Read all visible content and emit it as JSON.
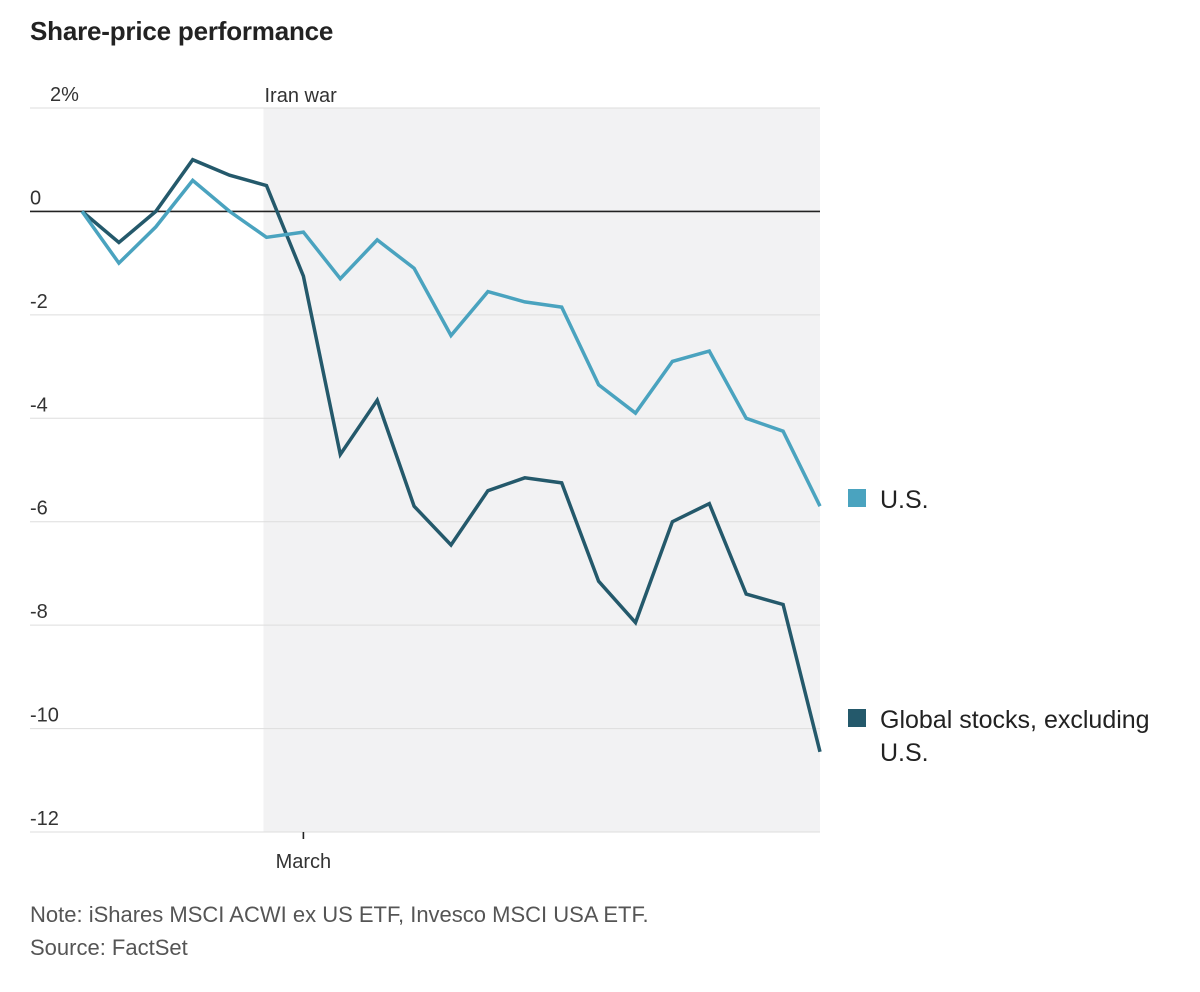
{
  "title": "Share-price performance",
  "chart_data": {
    "type": "line",
    "title": "Share-price performance",
    "xlabel": "",
    "ylabel": "",
    "ylim": [
      -12,
      2
    ],
    "y_ticks": [
      {
        "value": 2,
        "label": "2%"
      },
      {
        "value": 0,
        "label": "0"
      },
      {
        "value": -2,
        "label": "-2"
      },
      {
        "value": -4,
        "label": "-4"
      },
      {
        "value": -6,
        "label": "-6"
      },
      {
        "value": -8,
        "label": "-8"
      },
      {
        "value": -10,
        "label": "-10"
      },
      {
        "value": -12,
        "label": "-12"
      }
    ],
    "x": [
      0,
      1,
      2,
      3,
      4,
      5,
      6,
      7,
      8,
      9,
      10,
      11,
      12,
      13,
      14,
      15,
      16,
      17,
      18,
      19,
      20
    ],
    "x_range": [
      0,
      20
    ],
    "x_ticks": [
      {
        "value": 6,
        "label": "March"
      }
    ],
    "shaded_region": {
      "from": 5,
      "to": 20,
      "label": "Iran war"
    },
    "zero_line": true,
    "grid": true,
    "legend_position": "right",
    "series": [
      {
        "name": "U.S.",
        "color": "#4aa3bf",
        "values": [
          0,
          -1.0,
          -0.3,
          0.6,
          0.0,
          -0.5,
          -0.4,
          -1.3,
          -0.55,
          -1.1,
          -2.4,
          -1.55,
          -1.75,
          -1.85,
          -3.35,
          -3.9,
          -2.9,
          -2.7,
          -4.0,
          -4.25,
          -5.7
        ]
      },
      {
        "name": "Global stocks, excluding U.S.",
        "color": "#24596b",
        "values": [
          0,
          -0.6,
          0.0,
          1.0,
          0.7,
          0.5,
          -1.25,
          -4.7,
          -3.65,
          -5.7,
          -6.45,
          -5.4,
          -5.15,
          -5.25,
          -7.15,
          -7.95,
          -6.0,
          -5.65,
          -7.4,
          -7.6,
          -10.45
        ]
      }
    ]
  },
  "legend": [
    {
      "lines": [
        "U.S."
      ],
      "color": "#4aa3bf"
    },
    {
      "lines": [
        "Global stocks, excluding",
        "U.S."
      ],
      "color": "#24596b"
    }
  ],
  "notes": {
    "note": "Note: iShares MSCI ACWI ex US ETF, Invesco MSCI USA ETF.",
    "source": "Source: FactSet"
  }
}
